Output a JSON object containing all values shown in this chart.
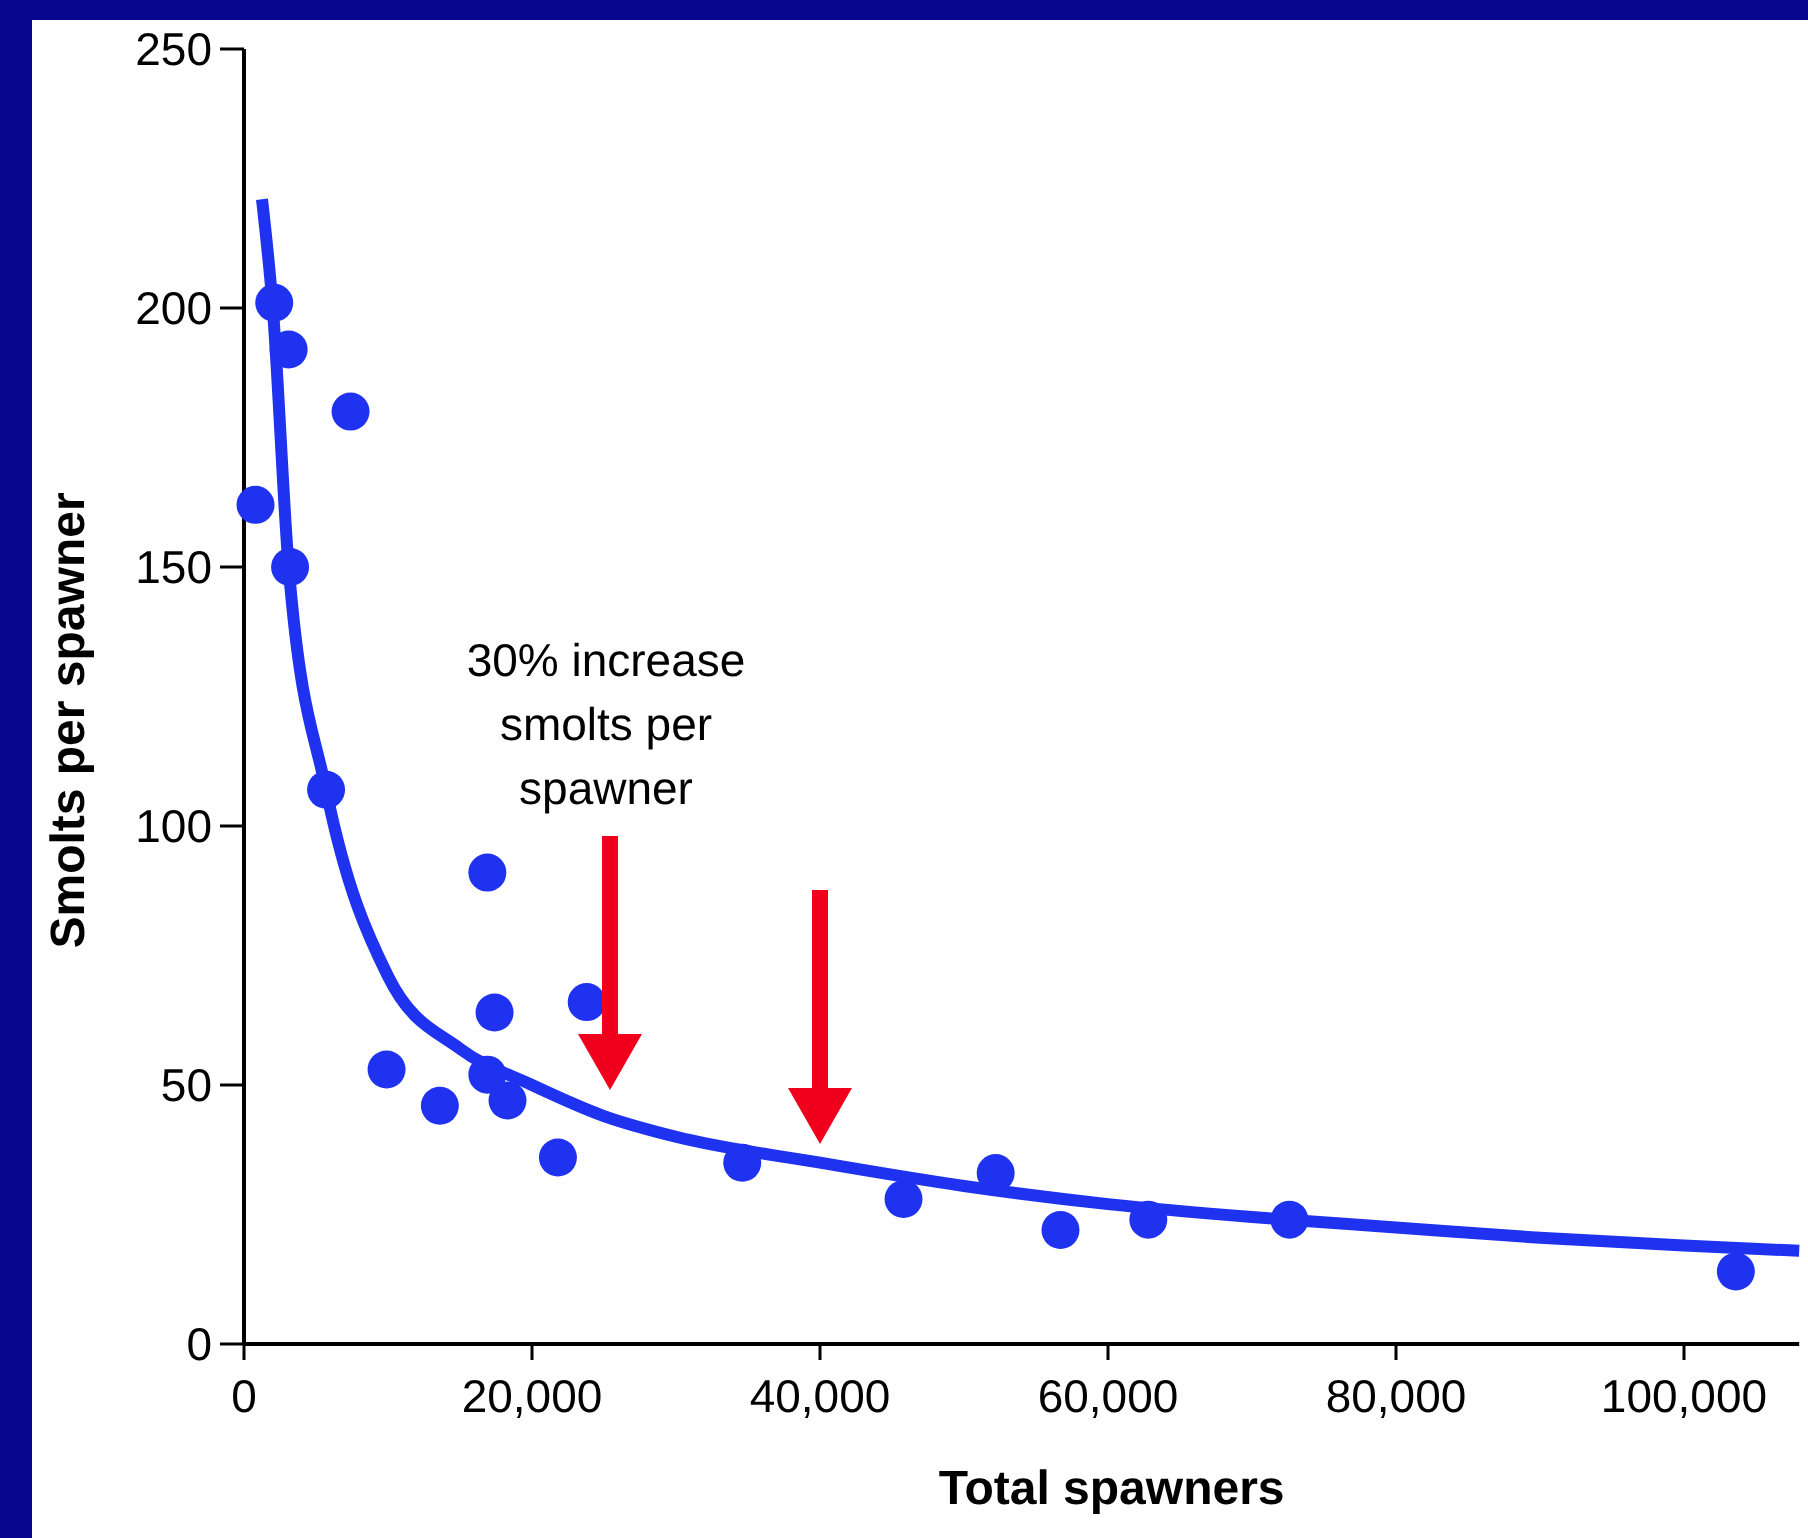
{
  "chart_data": {
    "type": "scatter",
    "xlabel": "Total spawners",
    "ylabel": "Smolts per spawner",
    "xlim": [
      0,
      108000
    ],
    "xticks": [
      0,
      {
        "value": 20000,
        "label": "20,000"
      },
      {
        "value": 40000,
        "label": "40,000"
      },
      {
        "value": 60000,
        "label": "60,000"
      },
      {
        "value": 80000,
        "label": "80,000"
      },
      {
        "value": 100000,
        "label": "100,000"
      }
    ],
    "ylim": [
      0,
      250
    ],
    "yticks": [
      0,
      50,
      100,
      150,
      200,
      250
    ],
    "grid": false,
    "marker": "circle",
    "series": [
      {
        "color": "#1f32f0",
        "x": [
          800,
          2100,
          3100,
          3200,
          7400,
          5700,
          9900,
          13600,
          16900,
          17400,
          16900,
          18300,
          21800,
          23800,
          34600,
          45800,
          52200,
          56700,
          62800,
          72600,
          103600
        ],
        "values": [
          162,
          201,
          192,
          150,
          180,
          107,
          53,
          46,
          91,
          64,
          52,
          47,
          36,
          66,
          35,
          28,
          33,
          22,
          24,
          24,
          14
        ]
      },
      {
        "type": "line",
        "color": "#1f32f0",
        "line_style": "solid",
        "marker": "none",
        "x": [
          1250,
          2000,
          3100,
          5700,
          10000,
          15000,
          20000,
          25000,
          30000,
          40000,
          50000,
          60000,
          70000,
          80000,
          90000,
          100000,
          108000
        ],
        "values": [
          221,
          200,
          150,
          107,
          71,
          57,
          50,
          44,
          40,
          35,
          30.5,
          27,
          24.5,
          22.5,
          20.5,
          19,
          18
        ]
      }
    ],
    "annotations": [
      "30% increase smolts per spawner"
    ]
  }
}
